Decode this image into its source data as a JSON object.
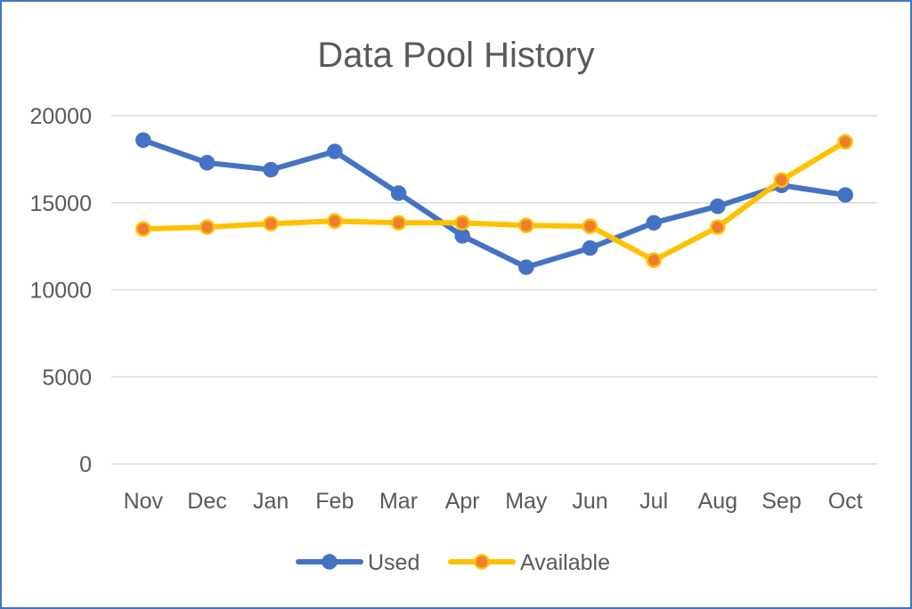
{
  "chart_data": {
    "type": "line",
    "title": "Data Pool History",
    "xlabel": "",
    "ylabel": "",
    "categories": [
      "Nov",
      "Dec",
      "Jan",
      "Feb",
      "Mar",
      "Apr",
      "May",
      "Jun",
      "Jul",
      "Aug",
      "Sep",
      "Oct"
    ],
    "ylim": [
      0,
      20000
    ],
    "yticks": [
      "0",
      "5000",
      "10000",
      "15000",
      "20000"
    ],
    "grid": true,
    "legend_position": "bottom",
    "series": [
      {
        "name": "Used",
        "color": "#4472c4",
        "marker_fill": "#4472c4",
        "values": [
          18600,
          17300,
          16900,
          17950,
          15550,
          13100,
          11300,
          12400,
          13850,
          14800,
          16000,
          15450
        ]
      },
      {
        "name": "Available",
        "color": "#ffc000",
        "marker_fill": "#ed7d31",
        "values": [
          13500,
          13600,
          13800,
          13950,
          13850,
          13850,
          13700,
          13650,
          11700,
          13600,
          16300,
          18500
        ]
      }
    ]
  }
}
